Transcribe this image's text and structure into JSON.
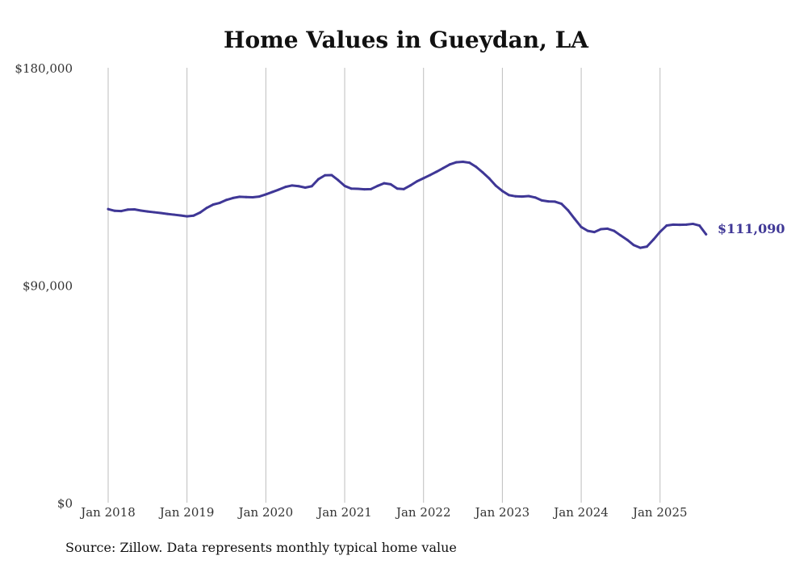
{
  "chart_data": {
    "type": "line",
    "title": "Home Values in Gueydan, LA",
    "source": "Source: Zillow. Data represents monthly typical home value",
    "ylim": [
      0,
      180000
    ],
    "yticks": [
      {
        "value": 0,
        "label": "$0"
      },
      {
        "value": 90000,
        "label": "$90,000"
      },
      {
        "value": 180000,
        "label": "$180,000"
      }
    ],
    "xticks": [
      {
        "month_index": 0,
        "label": "Jan 2018"
      },
      {
        "month_index": 12,
        "label": "Jan 2019"
      },
      {
        "month_index": 24,
        "label": "Jan 2020"
      },
      {
        "month_index": 36,
        "label": "Jan 2021"
      },
      {
        "month_index": 48,
        "label": "Jan 2022"
      },
      {
        "month_index": 60,
        "label": "Jan 2023"
      },
      {
        "month_index": 72,
        "label": "Jan 2024"
      },
      {
        "month_index": 84,
        "label": "Jan 2025"
      }
    ],
    "grid": "vertical at x ticks",
    "end_label": "$111,090",
    "color": "#3f3796",
    "series": [
      {
        "x_start": "Jan 2018",
        "frequency": "monthly",
        "values": [
          121500,
          120800,
          120700,
          121300,
          121400,
          120900,
          120500,
          120200,
          119900,
          119500,
          119200,
          118900,
          118500,
          118800,
          120100,
          122000,
          123400,
          124100,
          125300,
          126100,
          126600,
          126500,
          126400,
          126700,
          127600,
          128600,
          129600,
          130700,
          131300,
          131000,
          130400,
          131000,
          133900,
          135500,
          135600,
          133500,
          131100,
          130000,
          129900,
          129700,
          129800,
          131100,
          132200,
          131800,
          130000,
          129800,
          131300,
          133000,
          134300,
          135600,
          137000,
          138500,
          140000,
          140900,
          141100,
          140700,
          139000,
          136700,
          134200,
          131200,
          129000,
          127300,
          126800,
          126700,
          126900,
          126300,
          125100,
          124700,
          124600,
          123700,
          121000,
          117500,
          114100,
          112500,
          112000,
          113200,
          113400,
          112500,
          110600,
          108800,
          106600,
          105500,
          106000,
          108900,
          112100,
          114700,
          115100,
          115000,
          115100,
          115400,
          114700,
          111090
        ]
      }
    ]
  }
}
